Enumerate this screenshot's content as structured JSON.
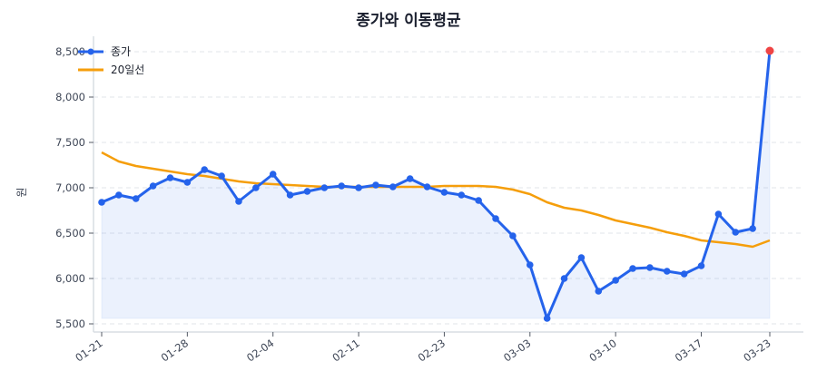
{
  "chart_data": {
    "type": "line",
    "title": "종가와 이동평균",
    "xlabel": "",
    "ylabel": "원",
    "ylim": [
      5500,
      8650
    ],
    "yticks": [
      5500,
      6000,
      6500,
      7000,
      7500,
      8000,
      8500
    ],
    "ytick_labels": [
      "5,500",
      "6,000",
      "6,500",
      "7,000",
      "7,500",
      "8,000",
      "8,500"
    ],
    "grid": true,
    "legend_position": "upper left",
    "xtick_indices": [
      0,
      5,
      10,
      15,
      20,
      25,
      30,
      35,
      39
    ],
    "xtick_labels": [
      "01-21",
      "01-28",
      "02-04",
      "02-11",
      "02-23",
      "03-03",
      "03-10",
      "03-17",
      "03-23"
    ],
    "series": [
      {
        "name": "종가",
        "color": "#2563eb",
        "marker": "circle",
        "fill": true,
        "last_point_color": "#ef4444",
        "values": [
          6840,
          6920,
          6880,
          7020,
          7110,
          7060,
          7200,
          7130,
          6850,
          7000,
          7150,
          6920,
          6960,
          7000,
          7020,
          7000,
          7030,
          7010,
          7100,
          7010,
          6950,
          6920,
          6860,
          6660,
          6470,
          6150,
          5560,
          6000,
          6230,
          5860,
          5980,
          6110,
          6120,
          6080,
          6050,
          6140,
          6710,
          6510,
          6550,
          8510
        ]
      },
      {
        "name": "20일선",
        "color": "#f59e0b",
        "marker": "none",
        "values": [
          7390,
          7290,
          7240,
          7210,
          7180,
          7150,
          7130,
          7100,
          7070,
          7050,
          7040,
          7030,
          7020,
          7010,
          7010,
          7010,
          7010,
          7010,
          7010,
          7010,
          7020,
          7020,
          7020,
          7010,
          6980,
          6930,
          6840,
          6780,
          6750,
          6700,
          6640,
          6600,
          6560,
          6510,
          6470,
          6420,
          6400,
          6380,
          6350,
          6420
        ]
      }
    ]
  }
}
